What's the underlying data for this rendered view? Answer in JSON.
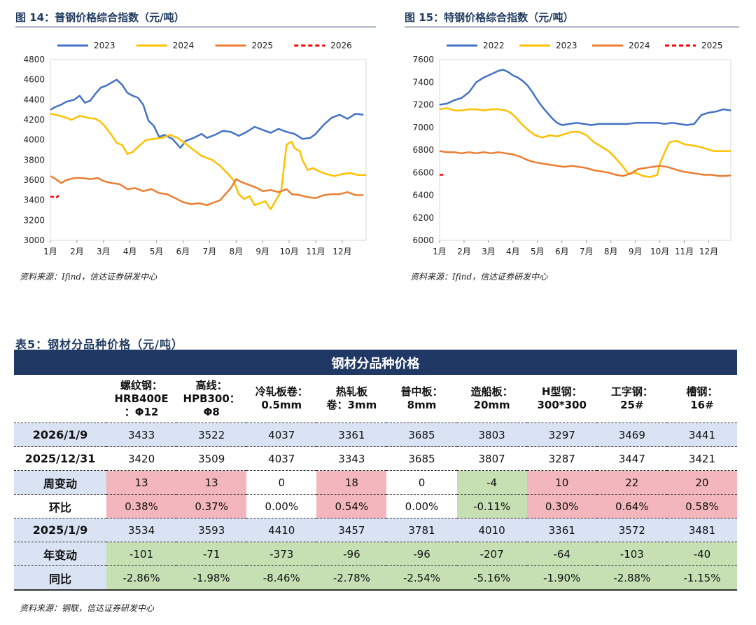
{
  "figure14": {
    "title": "图 14：普钢价格综合指数（元/吨）",
    "source": "资料来源：Ifind，信达证券研发中心"
  },
  "figure15": {
    "title": "图 15：特钢价格综合指数（元/吨）",
    "source": "资料来源：Ifind，信达证券研发中心"
  },
  "chart_data": [
    {
      "type": "line",
      "title": "普钢价格综合指数（元/吨）",
      "xlabel": "",
      "ylabel": "",
      "ylim": [
        3000,
        4800
      ],
      "yticks": [
        3000,
        3200,
        3400,
        3600,
        3800,
        4000,
        4200,
        4400,
        4600,
        4800
      ],
      "xlim": [
        1,
        12.9
      ],
      "categories": [
        "1月",
        "2月",
        "3月",
        "4月",
        "5月",
        "6月",
        "7月",
        "8月",
        "9月",
        "10月",
        "11月",
        "12月"
      ],
      "legend_position": "top",
      "series": [
        {
          "name": "2023",
          "color": "#4472c4",
          "dashed": false,
          "x": [
            1,
            1.2,
            1.4,
            1.6,
            1.9,
            2.1,
            2.3,
            2.5,
            2.7,
            2.9,
            3.1,
            3.3,
            3.5,
            3.7,
            3.9,
            4.1,
            4.3,
            4.5,
            4.7,
            4.9,
            5.1,
            5.3,
            5.6,
            5.9,
            6.1,
            6.4,
            6.7,
            6.9,
            7.2,
            7.5,
            7.8,
            8.1,
            8.4,
            8.7,
            9.0,
            9.3,
            9.6,
            9.9,
            10.2,
            10.5,
            10.8,
            11.0,
            11.3,
            11.6,
            11.9,
            12.2,
            12.5,
            12.8
          ],
          "y": [
            4300,
            4330,
            4350,
            4380,
            4400,
            4440,
            4370,
            4390,
            4460,
            4520,
            4540,
            4570,
            4600,
            4550,
            4470,
            4440,
            4420,
            4350,
            4190,
            4140,
            4030,
            4050,
            4010,
            3920,
            3990,
            4020,
            4060,
            4020,
            4050,
            4090,
            4080,
            4040,
            4080,
            4130,
            4100,
            4070,
            4110,
            4080,
            4060,
            4010,
            4020,
            4060,
            4150,
            4220,
            4250,
            4210,
            4260,
            4250
          ]
        },
        {
          "name": "2024",
          "color": "#ffc000",
          "dashed": false,
          "x": [
            1,
            1.2,
            1.5,
            1.8,
            2.1,
            2.4,
            2.7,
            2.9,
            3.1,
            3.3,
            3.5,
            3.7,
            3.9,
            4.1,
            4.3,
            4.6,
            4.9,
            5.2,
            5.5,
            5.8,
            6.1,
            6.4,
            6.7,
            6.9,
            7.1,
            7.4,
            7.7,
            7.9,
            8.1,
            8.3,
            8.5,
            8.7,
            8.9,
            9.1,
            9.3,
            9.5,
            9.7,
            9.9,
            10.0,
            10.1,
            10.2,
            10.3,
            10.4,
            10.5,
            10.7,
            10.9,
            11.1,
            11.4,
            11.7,
            12.0,
            12.3,
            12.6,
            12.9
          ],
          "y": [
            4260,
            4250,
            4230,
            4200,
            4240,
            4220,
            4210,
            4180,
            4120,
            4050,
            3970,
            3950,
            3860,
            3880,
            3930,
            4000,
            4010,
            4020,
            4050,
            4020,
            3960,
            3900,
            3840,
            3820,
            3800,
            3740,
            3660,
            3600,
            3460,
            3410,
            3440,
            3350,
            3370,
            3390,
            3310,
            3400,
            3490,
            3950,
            3970,
            3980,
            3920,
            3900,
            3890,
            3800,
            3700,
            3720,
            3690,
            3660,
            3640,
            3660,
            3670,
            3650,
            3650
          ]
        },
        {
          "name": "2025",
          "color": "#ed7d31",
          "dashed": false,
          "x": [
            1,
            1.2,
            1.4,
            1.6,
            1.9,
            2.2,
            2.5,
            2.8,
            3.0,
            3.3,
            3.6,
            3.9,
            4.2,
            4.5,
            4.8,
            5.1,
            5.4,
            5.7,
            6.0,
            6.3,
            6.6,
            6.9,
            7.2,
            7.4,
            7.6,
            7.8,
            8.0,
            8.2,
            8.4,
            8.6,
            8.8,
            9.0,
            9.3,
            9.6,
            9.9,
            10.1,
            10.4,
            10.7,
            11.0,
            11.3,
            11.6,
            11.9,
            12.2,
            12.5,
            12.8
          ],
          "y": [
            3640,
            3610,
            3570,
            3600,
            3620,
            3620,
            3610,
            3620,
            3590,
            3570,
            3560,
            3510,
            3520,
            3490,
            3510,
            3470,
            3460,
            3420,
            3380,
            3360,
            3370,
            3350,
            3380,
            3400,
            3460,
            3520,
            3610,
            3580,
            3560,
            3540,
            3520,
            3490,
            3500,
            3480,
            3510,
            3460,
            3450,
            3430,
            3420,
            3450,
            3460,
            3460,
            3480,
            3450,
            3450
          ]
        },
        {
          "name": "2026",
          "color": "#ff0000",
          "dashed": true,
          "x": [
            1,
            1.1,
            1.25,
            1.35
          ],
          "y": [
            3433,
            3433,
            3430,
            3460
          ]
        }
      ]
    },
    {
      "type": "line",
      "title": "特钢价格综合指数（元/吨）",
      "xlabel": "",
      "ylabel": "",
      "ylim": [
        6000,
        7600
      ],
      "yticks": [
        6000,
        6200,
        6400,
        6600,
        6800,
        7000,
        7200,
        7400,
        7600
      ],
      "xlim": [
        1,
        12.9
      ],
      "categories": [
        "1月",
        "2月",
        "3月",
        "4月",
        "5月",
        "6月",
        "7月",
        "8月",
        "9月",
        "10月",
        "11月",
        "12月"
      ],
      "legend_position": "top",
      "series": [
        {
          "name": "2022",
          "color": "#4472c4",
          "dashed": false,
          "x": [
            1,
            1.3,
            1.6,
            1.9,
            2.2,
            2.5,
            2.8,
            3.1,
            3.4,
            3.6,
            3.8,
            4.0,
            4.2,
            4.4,
            4.6,
            4.8,
            5.0,
            5.2,
            5.4,
            5.6,
            5.8,
            6.0,
            6.3,
            6.6,
            6.9,
            7.2,
            7.5,
            7.8,
            8.1,
            8.4,
            8.7,
            9.0,
            9.3,
            9.6,
            9.9,
            10.2,
            10.5,
            10.8,
            11.1,
            11.4,
            11.7,
            12.0,
            12.3,
            12.6,
            12.9
          ],
          "y": [
            7200,
            7210,
            7240,
            7260,
            7310,
            7400,
            7440,
            7470,
            7500,
            7510,
            7490,
            7460,
            7440,
            7410,
            7370,
            7310,
            7240,
            7180,
            7130,
            7080,
            7040,
            7020,
            7030,
            7040,
            7030,
            7020,
            7030,
            7030,
            7030,
            7030,
            7030,
            7040,
            7040,
            7040,
            7040,
            7030,
            7040,
            7030,
            7020,
            7030,
            7110,
            7130,
            7140,
            7160,
            7150
          ]
        },
        {
          "name": "2023",
          "color": "#ffc000",
          "dashed": false,
          "x": [
            1,
            1.3,
            1.6,
            1.9,
            2.2,
            2.5,
            2.8,
            3.1,
            3.4,
            3.7,
            3.9,
            4.1,
            4.3,
            4.6,
            4.9,
            5.2,
            5.5,
            5.8,
            6.1,
            6.4,
            6.7,
            7.0,
            7.3,
            7.6,
            7.9,
            8.1,
            8.3,
            8.5,
            8.7,
            8.9,
            9.1,
            9.3,
            9.6,
            9.9,
            10.0,
            10.2,
            10.4,
            10.7,
            11.0,
            11.3,
            11.6,
            11.9,
            12.2,
            12.5,
            12.9
          ],
          "y": [
            7160,
            7170,
            7150,
            7150,
            7160,
            7160,
            7150,
            7160,
            7160,
            7150,
            7130,
            7090,
            7040,
            6980,
            6930,
            6910,
            6930,
            6920,
            6940,
            6960,
            6960,
            6930,
            6870,
            6830,
            6790,
            6750,
            6700,
            6650,
            6590,
            6600,
            6590,
            6570,
            6560,
            6580,
            6680,
            6780,
            6870,
            6880,
            6850,
            6840,
            6830,
            6810,
            6790,
            6790,
            6790
          ]
        },
        {
          "name": "2024",
          "color": "#ed7d31",
          "dashed": false,
          "x": [
            1,
            1.3,
            1.6,
            1.9,
            2.2,
            2.5,
            2.8,
            3.1,
            3.4,
            3.7,
            4.0,
            4.3,
            4.6,
            4.9,
            5.2,
            5.5,
            5.8,
            6.1,
            6.4,
            6.7,
            7.0,
            7.3,
            7.6,
            7.9,
            8.2,
            8.5,
            8.8,
            9.1,
            9.4,
            9.7,
            10.0,
            10.3,
            10.6,
            10.9,
            11.2,
            11.5,
            11.8,
            12.1,
            12.4,
            12.7,
            12.9
          ],
          "y": [
            6790,
            6780,
            6780,
            6770,
            6780,
            6770,
            6780,
            6770,
            6780,
            6770,
            6760,
            6740,
            6710,
            6690,
            6680,
            6670,
            6660,
            6650,
            6660,
            6650,
            6640,
            6620,
            6610,
            6600,
            6580,
            6570,
            6590,
            6630,
            6640,
            6650,
            6660,
            6650,
            6630,
            6610,
            6600,
            6590,
            6580,
            6580,
            6570,
            6570,
            6575
          ]
        },
        {
          "name": "2025",
          "color": "#ff0000",
          "dashed": true,
          "x": [
            1,
            1.2
          ],
          "y": [
            6580,
            6580
          ]
        }
      ]
    }
  ],
  "table": {
    "title": "表5：钢材分品种价格（元/吨）",
    "banner": "钢材分品种价格",
    "columns": [
      "螺纹钢：HRB400E：Φ12",
      "高线：HPB300：Φ8",
      "冷轧板卷：0.5mm",
      "热轧板卷：3mm",
      "普中板：8mm",
      "造船板：20mm",
      "H型钢：300*300",
      "工字钢：25#",
      "槽钢：16#"
    ],
    "column_lines": [
      [
        "螺纹钢：",
        "HRB400E",
        "：Φ12"
      ],
      [
        "高线：",
        "HPB300：",
        "Φ8"
      ],
      [
        "冷轧板卷：",
        "0.5mm"
      ],
      [
        "热轧板",
        "卷：3mm"
      ],
      [
        "普中板：",
        "8mm"
      ],
      [
        "造船板：",
        "20mm"
      ],
      [
        "H型钢：",
        "300*300"
      ],
      [
        "工字钢：",
        "25#"
      ],
      [
        "槽钢：",
        "16#"
      ]
    ],
    "rows": [
      {
        "label": "2026/1/9",
        "values": [
          "3433",
          "3522",
          "4037",
          "3361",
          "3685",
          "3803",
          "3297",
          "3469",
          "3441"
        ]
      },
      {
        "label": "2025/12/31",
        "values": [
          "3420",
          "3509",
          "4037",
          "3343",
          "3685",
          "3807",
          "3287",
          "3447",
          "3421"
        ]
      },
      {
        "label": "周变动",
        "values": [
          "13",
          "13",
          "0",
          "18",
          "0",
          "-4",
          "10",
          "22",
          "20"
        ]
      },
      {
        "label": "环比",
        "values": [
          "0.38%",
          "0.37%",
          "0.00%",
          "0.54%",
          "0.00%",
          "-0.11%",
          "0.30%",
          "0.64%",
          "0.58%"
        ]
      },
      {
        "label": "2025/1/9",
        "values": [
          "3534",
          "3593",
          "4410",
          "3457",
          "3781",
          "4010",
          "3361",
          "3572",
          "3481"
        ]
      },
      {
        "label": "年变动",
        "values": [
          "-101",
          "-71",
          "-373",
          "-96",
          "-96",
          "-207",
          "-64",
          "-103",
          "-40"
        ]
      },
      {
        "label": "同比",
        "values": [
          "-2.86%",
          "-1.98%",
          "-8.46%",
          "-2.78%",
          "-2.54%",
          "-5.16%",
          "-1.90%",
          "-2.88%",
          "-1.15%"
        ]
      }
    ],
    "source": "资料来源：钢联，信达证券研发中心",
    "colors": {
      "banner": "#203864",
      "blue": "#dae3f3",
      "pink": "#f4b6bd",
      "green": "#c6e0b4"
    }
  }
}
